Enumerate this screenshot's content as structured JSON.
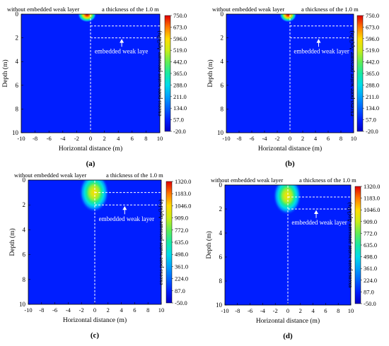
{
  "figure": {
    "subplot_letters": [
      "(a)",
      "(b)",
      "(c)",
      "(d)"
    ]
  },
  "chart_data": [
    {
      "type": "heatmap",
      "panel": "(a)",
      "title_left": "without embedded weak layer",
      "title_right": "a thickness of the 1.0 m",
      "annotation": "embedded weak layer",
      "annotation_display": "embedded weak laye",
      "xlabel": "Horizontal distance  (m)",
      "ylabel": "Depth (m)",
      "xlim": [
        -10,
        10
      ],
      "ylim": [
        0,
        10
      ],
      "y_inverted": true,
      "xticks": [
        "-10",
        "-8",
        "-6",
        "-4",
        "-2",
        "0",
        "2",
        "4",
        "6",
        "8",
        "10"
      ],
      "yticks": [
        "0",
        "2",
        "4",
        "6",
        "8",
        "10"
      ],
      "weak_layer": {
        "x_from": 0,
        "x_to": 10,
        "depth_top": 1.0,
        "depth_bottom": 2.0
      },
      "colorbar_label": "excess pore water pressure Δp(kPa)",
      "colorbar_ticks": [
        "750.0",
        "673.0",
        "596.0",
        "519.0",
        "442.0",
        "365.0",
        "288.0",
        "211.0",
        "134.0",
        "57.0",
        "-20.0"
      ],
      "colorbar_range": [
        -20.0,
        750.0
      ],
      "peak": {
        "x": -0.5,
        "depth": 0.05,
        "value": 750.0,
        "spread_x": 0.85,
        "spread_depth": 0.4
      }
    },
    {
      "type": "heatmap",
      "panel": "(b)",
      "title_left": "without embedded weak layer",
      "title_right": "a thickness of the 1.0 m",
      "annotation": "embedded weak layer",
      "annotation_display": "embedded weak layer",
      "xlabel": "Horizontal distance  (m)",
      "ylabel": "Depth (m)",
      "xlim": [
        -10,
        10
      ],
      "ylim": [
        0,
        10
      ],
      "y_inverted": true,
      "xticks": [
        "-10",
        "-8",
        "-6",
        "-4",
        "-2",
        "0",
        "2",
        "4",
        "6",
        "8",
        "10"
      ],
      "yticks": [
        "0",
        "2",
        "4",
        "6",
        "8",
        "10"
      ],
      "weak_layer": {
        "x_from": 0,
        "x_to": 10,
        "depth_top": 1.0,
        "depth_bottom": 2.0
      },
      "colorbar_label": "excess pore water pressure Δp(kPa)",
      "colorbar_ticks": [
        "750.0",
        "673.0",
        "596.0",
        "519.0",
        "442.0",
        "365.0",
        "288.0",
        "211.0",
        "134.0",
        "57.0",
        "-20.0"
      ],
      "colorbar_range": [
        -20.0,
        750.0
      ],
      "peak": {
        "x": -0.3,
        "depth": 0.05,
        "value": 750.0,
        "spread_x": 0.85,
        "spread_depth": 0.4
      }
    },
    {
      "type": "heatmap",
      "panel": "(c)",
      "title_left": "without embedded weak layer",
      "title_right": "a thickness of the 1.0 m",
      "annotation": "embedded weak layer",
      "annotation_display": "embedded weak layer",
      "xlabel": "Horizontal distance  (m)",
      "ylabel": "Depth (m)",
      "xlim": [
        -10,
        10
      ],
      "ylim": [
        0,
        10
      ],
      "y_inverted": true,
      "xticks": [
        "-10",
        "-8",
        "-6",
        "-4",
        "-2",
        "0",
        "2",
        "4",
        "6",
        "8",
        "10"
      ],
      "yticks": [
        "0",
        "2",
        "4",
        "6",
        "8",
        "10"
      ],
      "weak_layer": {
        "x_from": 0,
        "x_to": 10,
        "depth_top": 1.0,
        "depth_bottom": 2.0
      },
      "colorbar_label": "excess pore water pressure Δp(kPa)",
      "colorbar_ticks": [
        "1320.0",
        "1183.0",
        "1046.0",
        "909.0",
        "772.0",
        "635.0",
        "498.0",
        "361.0",
        "224.0",
        "87.0",
        "-50.0"
      ],
      "colorbar_range": [
        -50.0,
        1320.0
      ],
      "peak": {
        "x": -0.1,
        "depth": 1.0,
        "value": 1000.0,
        "spread_x": 1.4,
        "spread_depth": 1.0
      }
    },
    {
      "type": "heatmap",
      "panel": "(d)",
      "title_left": "without embedded weak layer",
      "title_right": "a thickness of the 1.0 m",
      "annotation": "embedded weak layer",
      "annotation_display": "embedded weak layer",
      "xlabel": "Horizontal distance  (m)",
      "ylabel": "Depth (m)",
      "xlim": [
        -10,
        10
      ],
      "ylim": [
        0,
        10
      ],
      "y_inverted": true,
      "xticks": [
        "-10",
        "-8",
        "-6",
        "-4",
        "-2",
        "0",
        "2",
        "4",
        "6",
        "8",
        "10"
      ],
      "yticks": [
        "0",
        "2",
        "4",
        "6",
        "8",
        "10"
      ],
      "weak_layer": {
        "x_from": 0,
        "x_to": 10,
        "depth_top": 1.0,
        "depth_bottom": 2.0
      },
      "colorbar_label": "excess pore water pressure Δp(kPa)",
      "colorbar_ticks": [
        "1320.0",
        "1183.0",
        "1046.0",
        "909.0",
        "772.0",
        "635.0",
        "498.0",
        "361.0",
        "224.0",
        "87.0",
        "-50.0"
      ],
      "colorbar_range": [
        -50.0,
        1320.0
      ],
      "peak": {
        "x": -0.1,
        "depth": 0.9,
        "value": 1000.0,
        "spread_x": 1.4,
        "spread_depth": 1.0
      }
    }
  ]
}
